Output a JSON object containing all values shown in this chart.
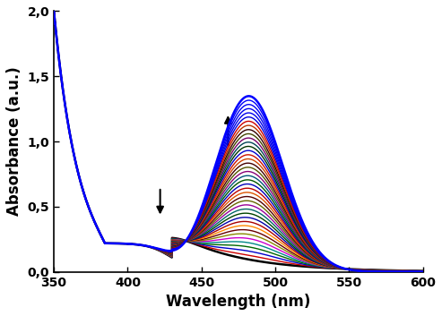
{
  "xlim": [
    350,
    600
  ],
  "ylim": [
    0.0,
    2.0
  ],
  "xlabel": "Wavelength (nm)",
  "ylabel": "Absorbance (a.u.)",
  "xlabel_fontsize": 12,
  "ylabel_fontsize": 12,
  "tick_fontsize": 10,
  "n_spectra": 40,
  "peak1_nm": 418,
  "peak2_nm": 482,
  "isosbestic_nm": 430,
  "colors_sequence": [
    "#000000",
    "#cc0000",
    "#0000cc",
    "#006600",
    "#008888",
    "#cc00cc",
    "#888800",
    "#660000",
    "#ff8800",
    "#aa0000",
    "#0000aa",
    "#004400",
    "#006666",
    "#990099",
    "#666600",
    "#550000",
    "#dd5500",
    "#bb0000",
    "#0000bb",
    "#005500",
    "#005577",
    "#880077",
    "#555500",
    "#440000",
    "#cc4400",
    "#cc1100",
    "#0000cc",
    "#003300",
    "#004455",
    "#770066",
    "#444400",
    "#330000",
    "#bb3300",
    "#cc0000",
    "#0000dd",
    "#0000ee",
    "#0000ef",
    "#0000f5",
    "#0000fa",
    "#0000ff"
  ]
}
